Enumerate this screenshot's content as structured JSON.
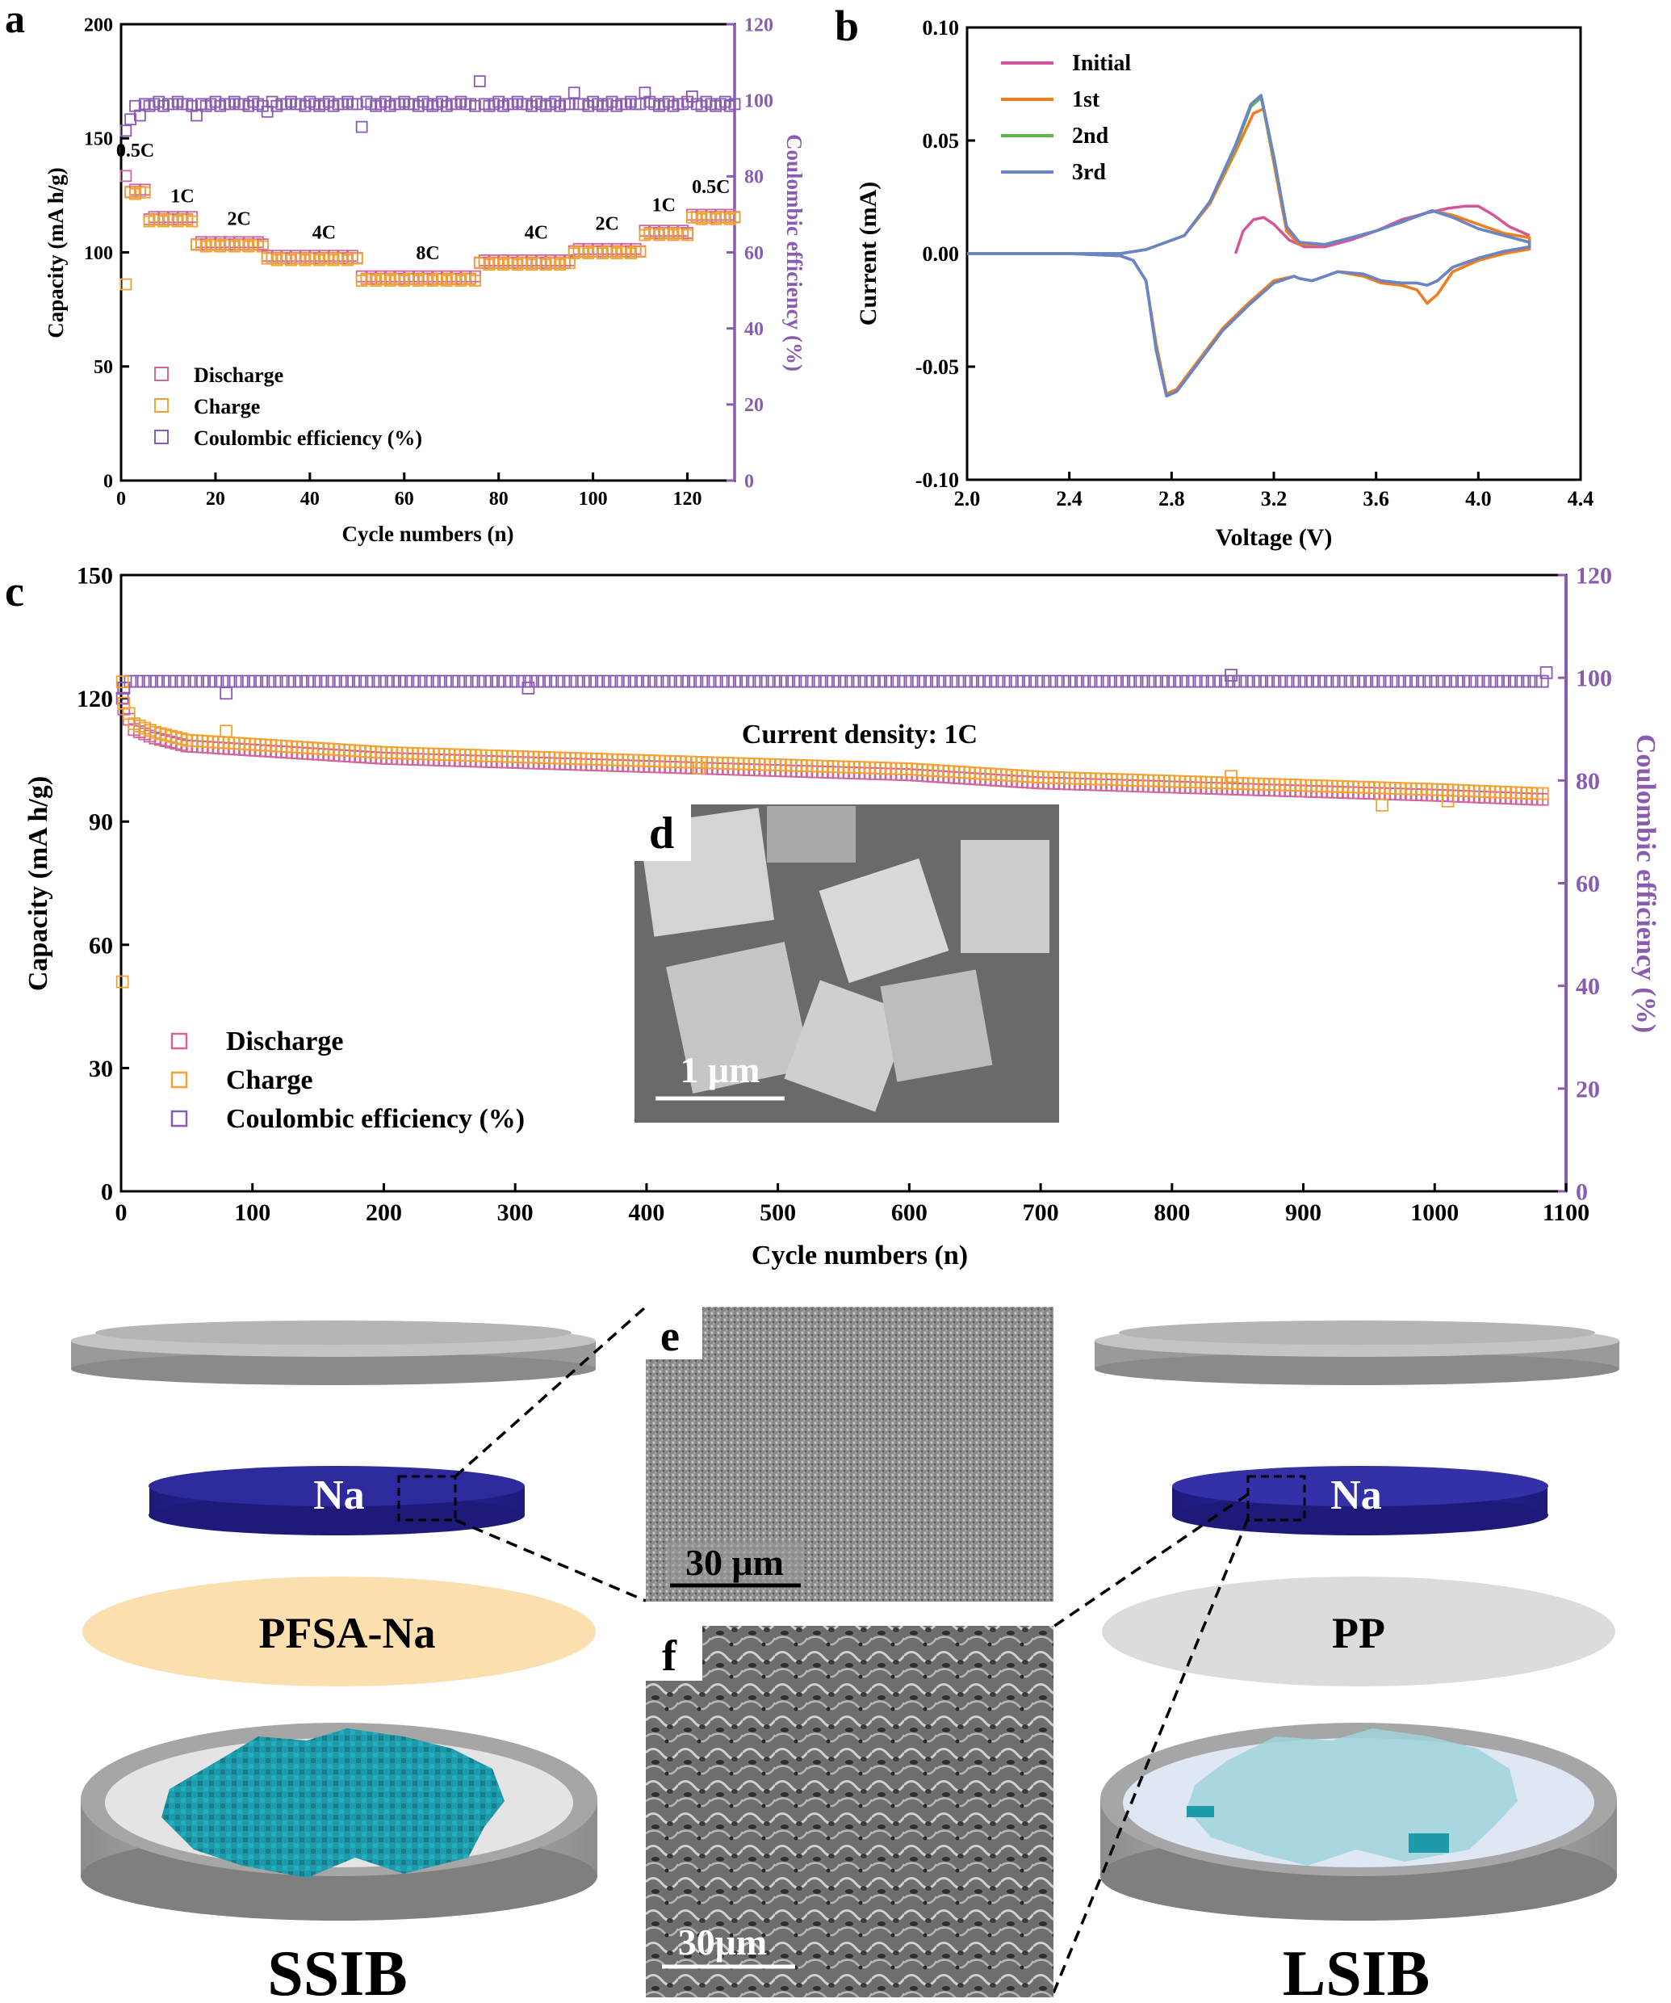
{
  "figure": {
    "panel_a": "a",
    "panel_b": "b",
    "panel_c": "c",
    "panel_d": "d",
    "panel_e": "e",
    "panel_f": "f",
    "scale_d": "1 μm",
    "scale_e": "30 μm",
    "scale_f": "30μm",
    "left_cell": {
      "anode": "Na",
      "separator": "PFSA-Na",
      "name": "SSIB"
    },
    "right_cell": {
      "anode": "Na",
      "separator": "PP",
      "name": "LSIB"
    }
  },
  "colors": {
    "discharge": "#d0679b",
    "charge": "#f2a233",
    "ce": "#8a5cb0",
    "ce_axis": "#8a5cb0",
    "na_disk": "#2d2a9e",
    "pfsa": "#fbdfae",
    "pp": "#dcdcdc",
    "cathode": "#1e9aaa"
  },
  "chart_data": [
    {
      "id": "a",
      "type": "scatter",
      "xlabel": "Cycle numbers (n)",
      "ylabel": "Capacity (mA h/g)",
      "y2label": "Coulombic efficiency (%)",
      "xlim": [
        0,
        130
      ],
      "ylim": [
        0,
        200
      ],
      "y2lim": [
        0,
        120
      ],
      "xticks": [
        "0",
        "20",
        "40",
        "60",
        "80",
        "100",
        "120"
      ],
      "yticks": [
        "0",
        "50",
        "100",
        "150",
        "200"
      ],
      "y2ticks": [
        "0",
        "20",
        "40",
        "60",
        "80",
        "100",
        "120"
      ],
      "legend": [
        "Discharge",
        "Charge",
        "Coulombic efficiency (%)"
      ],
      "rate_segments": [
        {
          "label": "0.5C",
          "from": 1,
          "to": 5,
          "charge": 126,
          "discharge": 127,
          "label_x": 3,
          "label_y": 142
        },
        {
          "label": "1C",
          "from": 6,
          "to": 15,
          "charge": 114,
          "discharge": 115,
          "label_x": 13,
          "label_y": 122
        },
        {
          "label": "2C",
          "from": 16,
          "to": 30,
          "charge": 103,
          "discharge": 104,
          "label_x": 25,
          "label_y": 112
        },
        {
          "label": "4C",
          "from": 31,
          "to": 50,
          "charge": 97,
          "discharge": 98,
          "label_x": 43,
          "label_y": 106
        },
        {
          "label": "8C",
          "from": 51,
          "to": 75,
          "charge": 88,
          "discharge": 89,
          "label_x": 65,
          "label_y": 97
        },
        {
          "label": "4C",
          "from": 76,
          "to": 95,
          "charge": 95,
          "discharge": 96,
          "label_x": 88,
          "label_y": 106
        },
        {
          "label": "2C",
          "from": 96,
          "to": 110,
          "charge": 100,
          "discharge": 101,
          "label_x": 103,
          "label_y": 110
        },
        {
          "label": "1C",
          "from": 111,
          "to": 120,
          "charge": 108,
          "discharge": 109,
          "label_x": 115,
          "label_y": 118
        },
        {
          "label": "0.5C",
          "from": 121,
          "to": 130,
          "charge": 115,
          "discharge": 116,
          "label_x": 125,
          "label_y": 126
        }
      ],
      "first_charge": 86,
      "ce_plateau": 99,
      "ce_outliers": [
        [
          1,
          92
        ],
        [
          2,
          95
        ],
        [
          4,
          96
        ],
        [
          16,
          96
        ],
        [
          31,
          97
        ],
        [
          51,
          93
        ],
        [
          76,
          105
        ],
        [
          96,
          102
        ],
        [
          111,
          102
        ],
        [
          121,
          101
        ]
      ]
    },
    {
      "id": "b",
      "type": "line",
      "xlabel": "Voltage (V)",
      "ylabel": "Current (mA)",
      "xlim": [
        2.0,
        4.4
      ],
      "ylim": [
        -0.1,
        0.1
      ],
      "xticks": [
        "2.0",
        "2.4",
        "2.8",
        "3.2",
        "3.6",
        "4.0",
        "4.4"
      ],
      "yticks": [
        "-0.10",
        "-0.05",
        "0.00",
        "0.05",
        "0.10"
      ],
      "series": [
        {
          "name": "Initial",
          "color": "#d6559a",
          "points": [
            [
              3.05,
              0.0
            ],
            [
              3.08,
              0.01
            ],
            [
              3.12,
              0.015
            ],
            [
              3.16,
              0.016
            ],
            [
              3.2,
              0.013
            ],
            [
              3.26,
              0.006
            ],
            [
              3.32,
              0.003
            ],
            [
              3.4,
              0.003
            ],
            [
              3.5,
              0.006
            ],
            [
              3.6,
              0.01
            ],
            [
              3.7,
              0.015
            ],
            [
              3.8,
              0.018
            ],
            [
              3.88,
              0.02
            ],
            [
              3.95,
              0.021
            ],
            [
              4.0,
              0.021
            ],
            [
              4.06,
              0.017
            ],
            [
              4.12,
              0.012
            ],
            [
              4.2,
              0.008
            ]
          ]
        },
        {
          "name": "1st",
          "color": "#f07c1e",
          "points": [
            [
              2.0,
              0.0
            ],
            [
              2.4,
              0.0
            ],
            [
              2.6,
              -0.001
            ],
            [
              2.65,
              -0.003
            ],
            [
              2.7,
              -0.012
            ],
            [
              2.74,
              -0.04
            ],
            [
              2.78,
              -0.062
            ],
            [
              2.82,
              -0.06
            ],
            [
              2.9,
              -0.048
            ],
            [
              3.0,
              -0.033
            ],
            [
              3.1,
              -0.022
            ],
            [
              3.2,
              -0.012
            ],
            [
              3.28,
              -0.01
            ],
            [
              3.3,
              -0.011
            ],
            [
              3.35,
              -0.012
            ],
            [
              3.45,
              -0.008
            ],
            [
              3.55,
              -0.01
            ],
            [
              3.62,
              -0.013
            ],
            [
              3.7,
              -0.014
            ],
            [
              3.76,
              -0.016
            ],
            [
              3.8,
              -0.022
            ],
            [
              3.84,
              -0.018
            ],
            [
              3.9,
              -0.008
            ],
            [
              4.0,
              -0.003
            ],
            [
              4.1,
              0.0
            ],
            [
              4.2,
              0.002
            ],
            [
              4.2,
              0.007
            ],
            [
              4.1,
              0.009
            ],
            [
              4.0,
              0.013
            ],
            [
              3.9,
              0.017
            ],
            [
              3.82,
              0.019
            ],
            [
              3.7,
              0.014
            ],
            [
              3.6,
              0.01
            ],
            [
              3.5,
              0.007
            ],
            [
              3.4,
              0.004
            ],
            [
              3.3,
              0.004
            ],
            [
              3.25,
              0.01
            ],
            [
              3.2,
              0.04
            ],
            [
              3.16,
              0.064
            ],
            [
              3.12,
              0.062
            ],
            [
              3.05,
              0.045
            ],
            [
              2.95,
              0.022
            ],
            [
              2.85,
              0.008
            ],
            [
              2.7,
              0.0018
            ],
            [
              2.6,
              0.0
            ],
            [
              2.4,
              0.0
            ],
            [
              2.0,
              0.0
            ]
          ]
        },
        {
          "name": "2nd",
          "color": "#5cb947",
          "points": [
            [
              2.0,
              0.0
            ],
            [
              2.4,
              0.0
            ],
            [
              2.6,
              -0.001
            ],
            [
              2.65,
              -0.003
            ],
            [
              2.7,
              -0.012
            ],
            [
              2.74,
              -0.042
            ],
            [
              2.78,
              -0.063
            ],
            [
              2.82,
              -0.061
            ],
            [
              2.9,
              -0.049
            ],
            [
              3.0,
              -0.034
            ],
            [
              3.1,
              -0.023
            ],
            [
              3.2,
              -0.013
            ],
            [
              3.28,
              -0.01
            ],
            [
              3.3,
              -0.011
            ],
            [
              3.35,
              -0.012
            ],
            [
              3.45,
              -0.008
            ],
            [
              3.55,
              -0.009
            ],
            [
              3.62,
              -0.012
            ],
            [
              3.7,
              -0.013
            ],
            [
              3.76,
              -0.013
            ],
            [
              3.8,
              -0.014
            ],
            [
              3.84,
              -0.012
            ],
            [
              3.9,
              -0.006
            ],
            [
              4.0,
              -0.002
            ],
            [
              4.1,
              0.001
            ],
            [
              4.2,
              0.003
            ],
            [
              4.2,
              0.005
            ],
            [
              4.1,
              0.008
            ],
            [
              4.0,
              0.011
            ],
            [
              3.9,
              0.016
            ],
            [
              3.82,
              0.019
            ],
            [
              3.7,
              0.014
            ],
            [
              3.6,
              0.01
            ],
            [
              3.5,
              0.007
            ],
            [
              3.4,
              0.004
            ],
            [
              3.3,
              0.005
            ],
            [
              3.25,
              0.012
            ],
            [
              3.2,
              0.042
            ],
            [
              3.15,
              0.069
            ],
            [
              3.11,
              0.065
            ],
            [
              3.05,
              0.047
            ],
            [
              2.95,
              0.023
            ],
            [
              2.85,
              0.008
            ],
            [
              2.7,
              0.0018
            ],
            [
              2.6,
              0.0
            ],
            [
              2.4,
              0.0
            ],
            [
              2.0,
              0.0
            ]
          ]
        },
        {
          "name": "3rd",
          "color": "#6b83c8",
          "points": [
            [
              2.0,
              0.0
            ],
            [
              2.4,
              0.0
            ],
            [
              2.6,
              -0.001
            ],
            [
              2.65,
              -0.003
            ],
            [
              2.7,
              -0.012
            ],
            [
              2.74,
              -0.043
            ],
            [
              2.78,
              -0.063
            ],
            [
              2.82,
              -0.061
            ],
            [
              2.9,
              -0.049
            ],
            [
              3.0,
              -0.034
            ],
            [
              3.1,
              -0.023
            ],
            [
              3.2,
              -0.013
            ],
            [
              3.28,
              -0.01
            ],
            [
              3.3,
              -0.011
            ],
            [
              3.35,
              -0.012
            ],
            [
              3.45,
              -0.008
            ],
            [
              3.55,
              -0.009
            ],
            [
              3.62,
              -0.012
            ],
            [
              3.7,
              -0.013
            ],
            [
              3.76,
              -0.013
            ],
            [
              3.8,
              -0.014
            ],
            [
              3.84,
              -0.012
            ],
            [
              3.9,
              -0.006
            ],
            [
              4.0,
              -0.002
            ],
            [
              4.1,
              0.001
            ],
            [
              4.2,
              0.003
            ],
            [
              4.2,
              0.005
            ],
            [
              4.1,
              0.008
            ],
            [
              4.0,
              0.011
            ],
            [
              3.9,
              0.016
            ],
            [
              3.82,
              0.019
            ],
            [
              3.7,
              0.014
            ],
            [
              3.6,
              0.01
            ],
            [
              3.5,
              0.007
            ],
            [
              3.4,
              0.004
            ],
            [
              3.3,
              0.005
            ],
            [
              3.25,
              0.012
            ],
            [
              3.2,
              0.043
            ],
            [
              3.15,
              0.07
            ],
            [
              3.11,
              0.066
            ],
            [
              3.05,
              0.048
            ],
            [
              2.95,
              0.023
            ],
            [
              2.85,
              0.008
            ],
            [
              2.7,
              0.0018
            ],
            [
              2.6,
              0.0
            ],
            [
              2.4,
              0.0
            ],
            [
              2.0,
              0.0
            ]
          ]
        }
      ]
    },
    {
      "id": "c",
      "type": "scatter",
      "xlabel": "Cycle numbers (n)",
      "ylabel": "Capacity (mA h/g)",
      "y2label": "Coulombic efficiency (%)",
      "xlim": [
        0,
        1100
      ],
      "ylim": [
        0,
        150
      ],
      "y2lim": [
        0,
        120
      ],
      "xticks": [
        "0",
        "100",
        "200",
        "300",
        "400",
        "500",
        "600",
        "700",
        "800",
        "900",
        "1000",
        "1100"
      ],
      "yticks": [
        "0",
        "30",
        "60",
        "90",
        "120",
        "150"
      ],
      "y2ticks": [
        "0",
        "20",
        "40",
        "60",
        "80",
        "100",
        "120"
      ],
      "legend": [
        "Discharge",
        "Charge",
        "Coulombic efficiency (%)"
      ],
      "annotation": "Current density: 1C",
      "first_charge": 51,
      "first_discharge": 124,
      "capacity_trend": [
        [
          2,
          118
        ],
        [
          10,
          113
        ],
        [
          25,
          111
        ],
        [
          50,
          109
        ],
        [
          100,
          108
        ],
        [
          200,
          106
        ],
        [
          300,
          105
        ],
        [
          400,
          104
        ],
        [
          500,
          103
        ],
        [
          600,
          102
        ],
        [
          700,
          100
        ],
        [
          800,
          99
        ],
        [
          900,
          98
        ],
        [
          1000,
          97
        ],
        [
          1080,
          96
        ]
      ],
      "ce_plateau": 99.5,
      "ce_outliers": [
        [
          1,
          96
        ],
        [
          2,
          98
        ],
        [
          80,
          97
        ],
        [
          310,
          98
        ],
        [
          845,
          100.5
        ],
        [
          1085,
          101
        ]
      ],
      "capacity_outliers": [
        [
          80,
          112
        ],
        [
          440,
          103
        ],
        [
          845,
          101
        ],
        [
          960,
          94
        ],
        [
          1010,
          95
        ]
      ]
    }
  ]
}
